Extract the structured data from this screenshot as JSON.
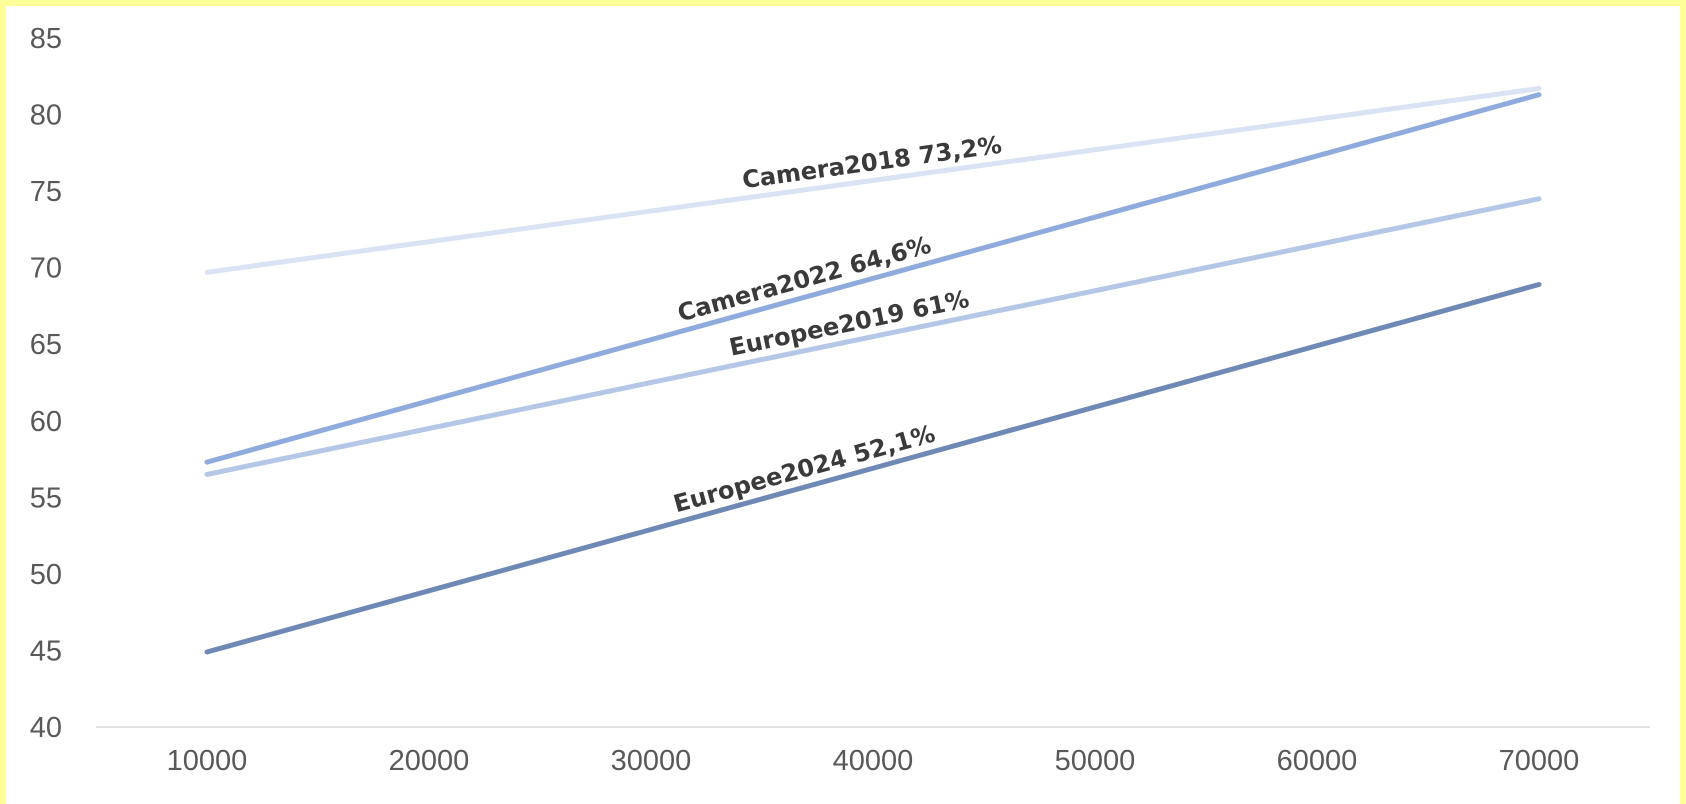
{
  "chart_data": {
    "type": "line",
    "title": "",
    "xlabel": "",
    "ylabel": "",
    "x": [
      10000,
      70000
    ],
    "xlim": [
      5000,
      75000
    ],
    "ylim": [
      40,
      85
    ],
    "xticks": [
      "10000",
      "20000",
      "30000",
      "40000",
      "50000",
      "60000",
      "70000"
    ],
    "yticks": [
      "40",
      "45",
      "50",
      "55",
      "60",
      "65",
      "70",
      "75",
      "80",
      "85"
    ],
    "grid": false,
    "legend": "none",
    "series": [
      {
        "name": "Camera2018",
        "label_value": "73,2%",
        "values": [
          69.7,
          81.7
        ],
        "color": "#dae3f3"
      },
      {
        "name": "Camera2022",
        "label_value": "64,6%",
        "values": [
          57.3,
          81.3
        ],
        "color": "#8faadc"
      },
      {
        "name": "Europee2019",
        "label_value": "61%",
        "values": [
          56.5,
          74.5
        ],
        "color": "#b4c7e7"
      },
      {
        "name": "Europee2024",
        "label_value": "52,1%",
        "values": [
          44.9,
          68.9
        ],
        "color": "#6f89b7"
      }
    ],
    "label_x_positions": [
      40000,
      37000,
      39000,
      37000
    ]
  }
}
